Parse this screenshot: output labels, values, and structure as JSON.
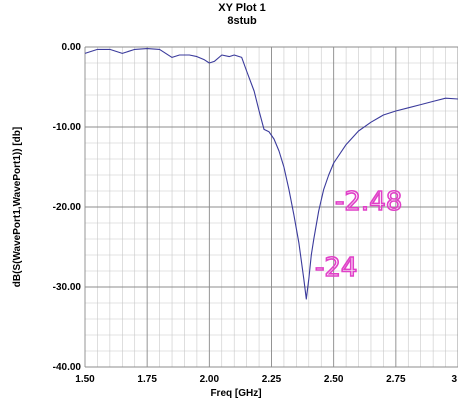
{
  "chart_data": {
    "type": "line",
    "title": "XY Plot 1",
    "subtitle": "8stub",
    "xlabel": "Freq [GHz]",
    "ylabel": "dB(S(WavePort1,WavePort1)) [db]",
    "xlim": [
      1.5,
      3.0
    ],
    "ylim": [
      -40,
      0
    ],
    "grid": true,
    "x_ticks": [
      {
        "value": 1.5,
        "label": "1.50"
      },
      {
        "value": 1.75,
        "label": "1.75"
      },
      {
        "value": 2.0,
        "label": "2.00"
      },
      {
        "value": 2.25,
        "label": "2.25"
      },
      {
        "value": 2.5,
        "label": "2.50"
      },
      {
        "value": 2.75,
        "label": "2.75"
      },
      {
        "value": 3.0,
        "label": "3"
      }
    ],
    "y_ticks": [
      {
        "value": 0,
        "label": "0.00"
      },
      {
        "value": -10,
        "label": "-10.00"
      },
      {
        "value": -20,
        "label": "-20.00"
      },
      {
        "value": -30,
        "label": "-30.00"
      },
      {
        "value": -40,
        "label": "-40.00"
      }
    ],
    "series": [
      {
        "color": "#3b3b9c",
        "x": [
          1.5,
          1.55,
          1.6,
          1.65,
          1.7,
          1.75,
          1.8,
          1.85,
          1.88,
          1.92,
          1.95,
          1.98,
          2.0,
          2.02,
          2.05,
          2.08,
          2.1,
          2.13,
          2.15,
          2.18,
          2.2,
          2.22,
          2.24,
          2.26,
          2.28,
          2.3,
          2.32,
          2.34,
          2.36,
          2.38,
          2.39,
          2.4,
          2.41,
          2.42,
          2.44,
          2.46,
          2.48,
          2.5,
          2.55,
          2.6,
          2.65,
          2.7,
          2.75,
          2.8,
          2.85,
          2.9,
          2.95,
          3.0
        ],
        "y": [
          -0.8,
          -0.3,
          -0.3,
          -0.8,
          -0.3,
          -0.2,
          -0.3,
          -1.3,
          -1.0,
          -1.0,
          -1.2,
          -1.6,
          -2.0,
          -1.8,
          -1.0,
          -1.2,
          -1.0,
          -1.3,
          -3.0,
          -5.5,
          -8.0,
          -10.3,
          -10.6,
          -11.5,
          -13.0,
          -15.0,
          -17.8,
          -21.0,
          -24.5,
          -29.0,
          -31.5,
          -29.0,
          -26.0,
          -24.0,
          -20.5,
          -17.8,
          -16.0,
          -14.5,
          -12.2,
          -10.5,
          -9.4,
          -8.5,
          -8.0,
          -7.6,
          -7.2,
          -6.8,
          -6.4,
          -6.5
        ]
      }
    ],
    "annotations": [
      {
        "text": "-2.48",
        "color": "#e040c8"
      },
      {
        "text": "-24",
        "color": "#e040c8"
      }
    ]
  }
}
